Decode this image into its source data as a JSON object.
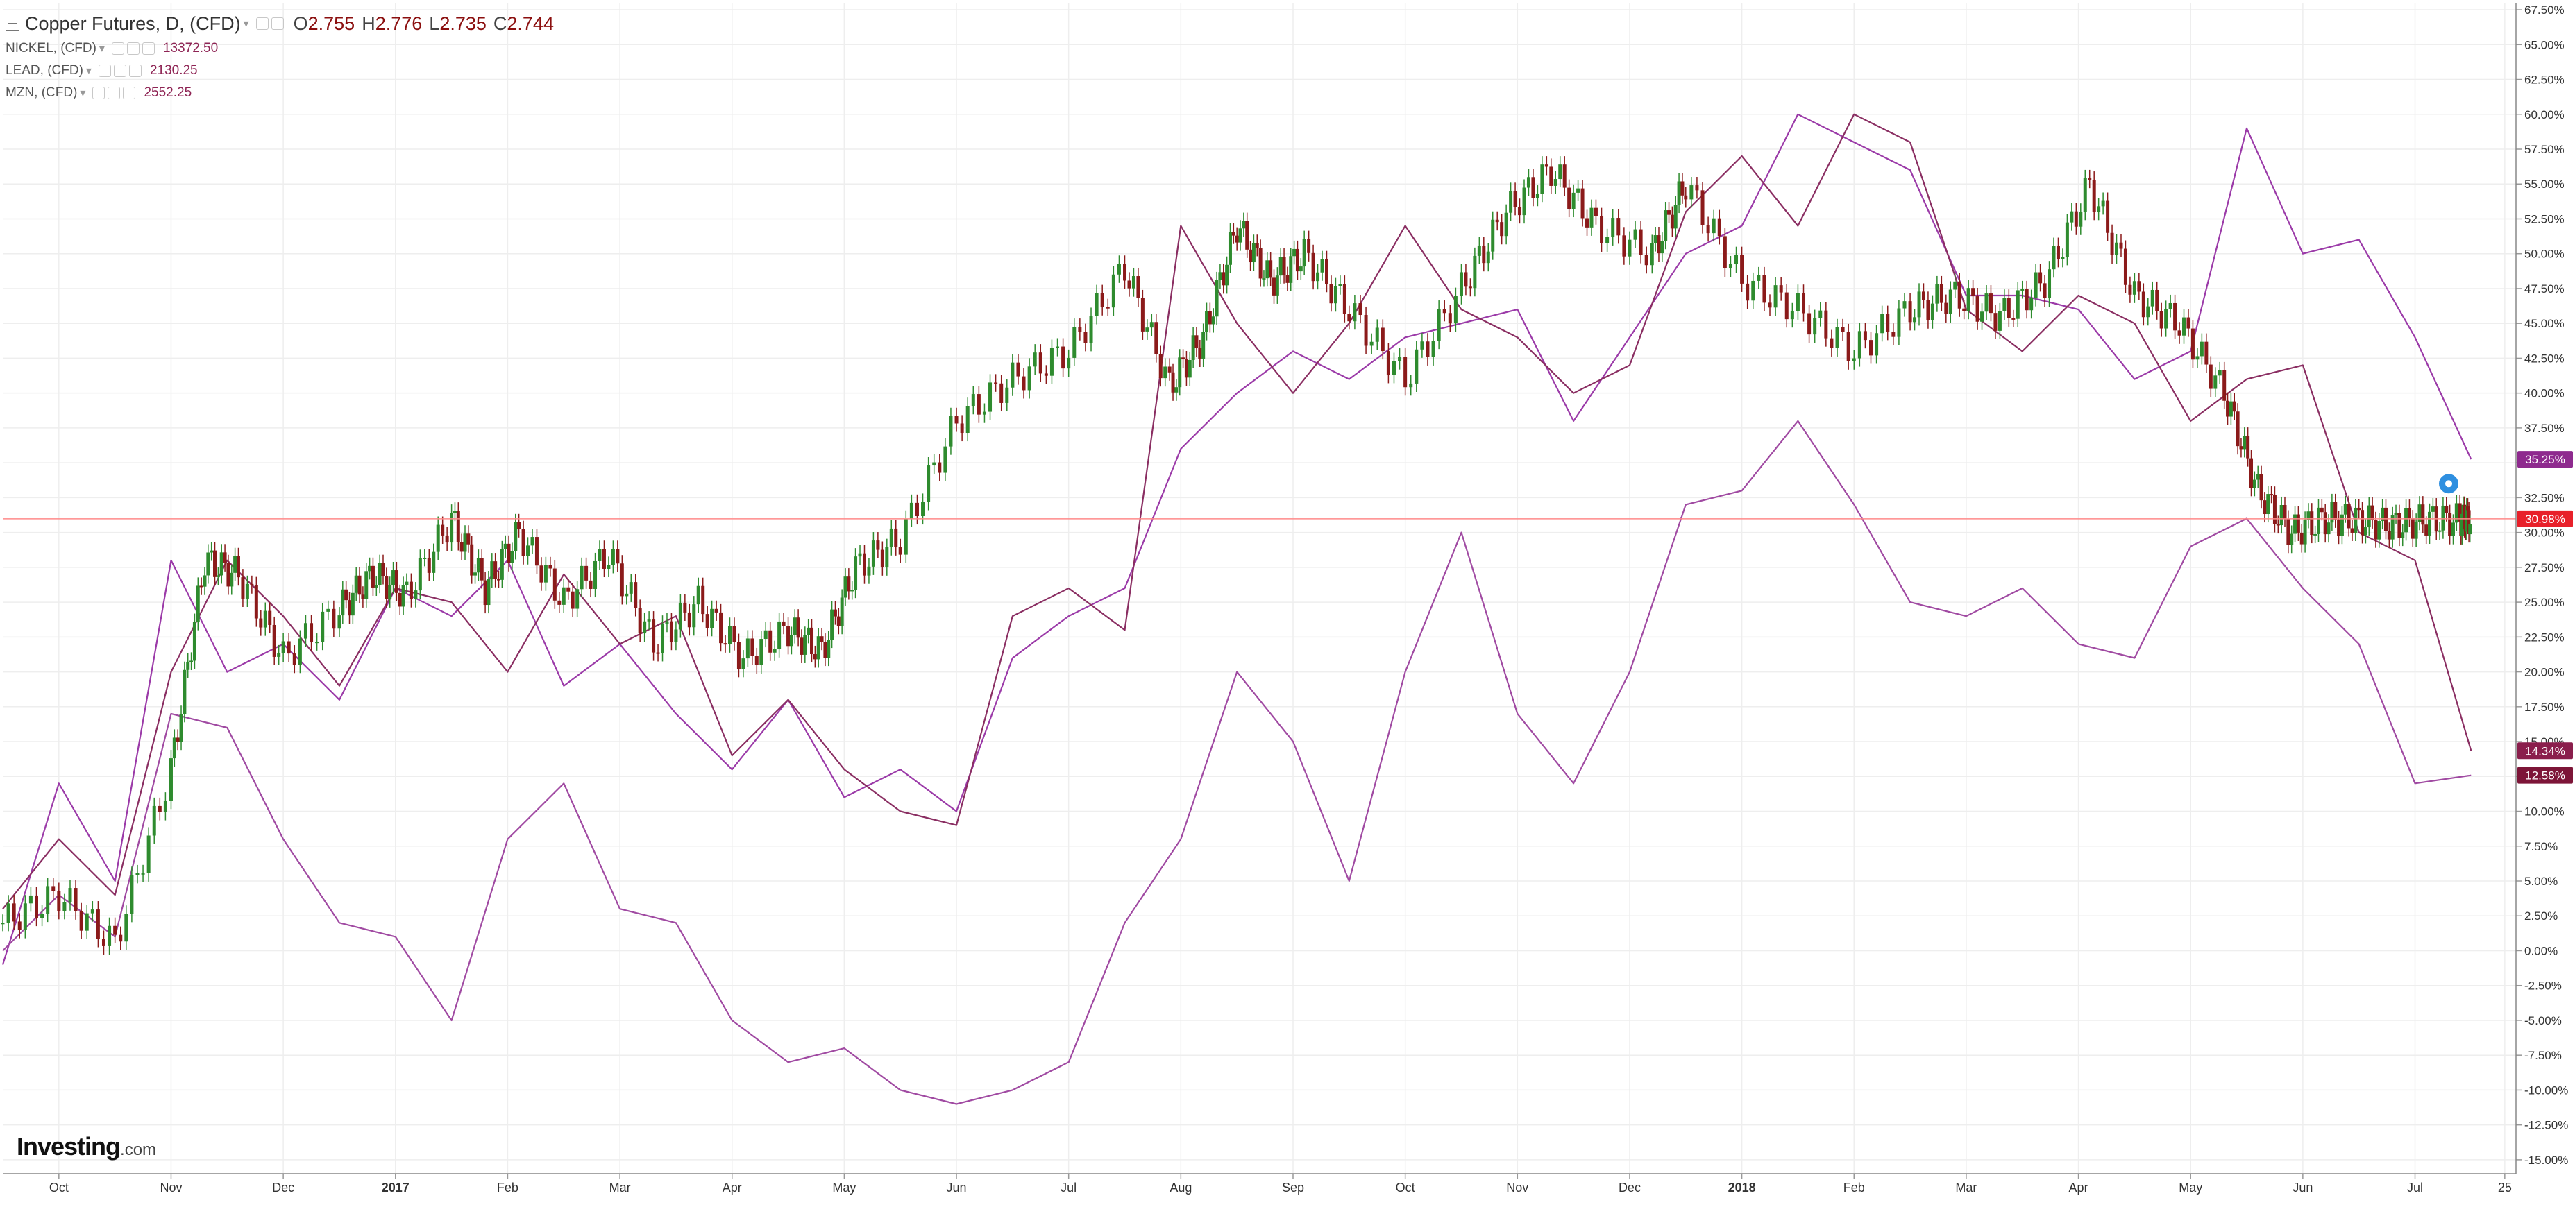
{
  "legend": {
    "title": "Copper Futures, D, (CFD)",
    "ohlc": [
      {
        "k": "O",
        "v": "2.755"
      },
      {
        "k": "H",
        "v": "2.776"
      },
      {
        "k": "L",
        "v": "2.735"
      },
      {
        "k": "C",
        "v": "2.744"
      }
    ],
    "overlays": [
      {
        "name": "NICKEL, (CFD)",
        "value": "13372.50"
      },
      {
        "name": "LEAD, (CFD)",
        "value": "2130.25"
      },
      {
        "name": "MZN, (CFD)",
        "value": "2552.25"
      }
    ]
  },
  "brand": {
    "name": "Investing",
    "suffix": ".com"
  },
  "colors": {
    "up": "#2e8b2e",
    "down": "#8b1a1a",
    "nickel": "#9b3aa8",
    "lead": "#8a2e62",
    "mzn": "#a04aa2",
    "price_line": "#ff8a8a",
    "badge_nickel": "#8e2a8e",
    "badge_price": "#e8202a",
    "badge_lead": "#8a1e4c",
    "badge_mzn": "#7d1538"
  },
  "chart_data": {
    "type": "line",
    "ylim": [
      -16,
      68
    ],
    "y_ticks": [
      "67.50%",
      "65.00%",
      "62.50%",
      "60.00%",
      "57.50%",
      "55.00%",
      "52.50%",
      "50.00%",
      "47.50%",
      "45.00%",
      "42.50%",
      "40.00%",
      "37.50%",
      "35.00%",
      "32.50%",
      "30.00%",
      "27.50%",
      "25.00%",
      "22.50%",
      "20.00%",
      "17.50%",
      "15.00%",
      "12.50%",
      "10.00%",
      "7.50%",
      "5.00%",
      "2.50%",
      "0.00%",
      "-2.50%",
      "-5.00%",
      "-7.50%",
      "-10.00%",
      "-12.50%",
      "-15.00%"
    ],
    "x_labels": [
      "Oct",
      "Nov",
      "Dec",
      "2017",
      "Feb",
      "Mar",
      "Apr",
      "May",
      "Jun",
      "Jul",
      "Aug",
      "Sep",
      "Oct",
      "Nov",
      "Dec",
      "2018",
      "Feb",
      "Mar",
      "Apr",
      "May",
      "Jun",
      "Jul",
      "25"
    ],
    "x_label_pos": [
      0.5,
      1.5,
      2.5,
      3.5,
      4.5,
      5.5,
      6.5,
      7.5,
      8.5,
      9.5,
      10.5,
      11.5,
      12.5,
      13.5,
      14.5,
      15.5,
      16.5,
      17.5,
      18.5,
      19.5,
      20.5,
      21.5,
      22.3
    ],
    "x_range": [
      0,
      22.4
    ],
    "series": [
      {
        "name": "Copper Futures, D, (CFD)",
        "kind": "candles",
        "x": [
          0.0,
          0.5,
          1.0,
          1.5,
          1.8,
          2.1,
          2.5,
          3.0,
          3.3,
          3.6,
          4.0,
          4.3,
          4.6,
          5.0,
          5.4,
          5.8,
          6.2,
          6.6,
          7.0,
          7.3,
          7.6,
          8.0,
          8.5,
          9.0,
          9.5,
          10.0,
          10.4,
          10.7,
          11.0,
          11.3,
          11.6,
          12.0,
          12.5,
          13.0,
          13.4,
          13.8,
          14.2,
          14.7,
          15.0,
          15.5,
          16.0,
          16.5,
          17.0,
          17.4,
          17.8,
          18.2,
          18.6,
          19.0,
          19.4,
          19.8,
          20.1,
          20.4,
          20.7,
          21.0,
          21.3,
          21.6,
          21.9,
          22.0
        ],
        "y": [
          2.0,
          4.0,
          0.5,
          13.0,
          28.0,
          27.0,
          21.0,
          24.5,
          27.0,
          25.5,
          31.0,
          26.0,
          30.0,
          25.0,
          28.5,
          22.0,
          25.0,
          21.0,
          23.0,
          21.5,
          27.5,
          29.5,
          38.0,
          41.0,
          43.0,
          49.0,
          40.5,
          44.0,
          52.0,
          48.0,
          50.0,
          46.0,
          41.0,
          47.5,
          53.0,
          56.0,
          52.0,
          50.0,
          55.0,
          48.0,
          46.0,
          43.0,
          46.0,
          47.0,
          45.5,
          48.0,
          55.0,
          47.0,
          45.0,
          40.0,
          33.0,
          30.0,
          31.0,
          30.9,
          30.5,
          30.9,
          30.9,
          30.98
        ],
        "label": "30.98%"
      },
      {
        "name": "NICKEL, (CFD)",
        "x": [
          0.0,
          0.5,
          1.0,
          1.5,
          2.0,
          2.5,
          3.0,
          3.5,
          4.0,
          4.5,
          5.0,
          5.5,
          6.0,
          6.5,
          7.0,
          7.5,
          8.0,
          8.5,
          9.0,
          9.5,
          10.0,
          10.5,
          11.0,
          11.5,
          12.0,
          12.5,
          13.0,
          13.5,
          14.0,
          14.5,
          15.0,
          15.5,
          16.0,
          16.5,
          17.0,
          17.5,
          18.0,
          18.5,
          19.0,
          19.5,
          20.0,
          20.5,
          21.0,
          21.5,
          22.0
        ],
        "y": [
          -1.0,
          12.0,
          5.0,
          28.0,
          20.0,
          22.0,
          18.0,
          26.0,
          24.0,
          28.0,
          19.0,
          22.0,
          17.0,
          13.0,
          18.0,
          11.0,
          13.0,
          10.0,
          21.0,
          24.0,
          26.0,
          36.0,
          40.0,
          43.0,
          41.0,
          44.0,
          45.0,
          46.0,
          38.0,
          44.0,
          50.0,
          52.0,
          60.0,
          58.0,
          56.0,
          47.0,
          47.0,
          46.0,
          41.0,
          43.0,
          59.0,
          50.0,
          51.0,
          44.0,
          35.25
        ],
        "label": "35.25%"
      },
      {
        "name": "LEAD, (CFD)",
        "x": [
          0.0,
          0.5,
          1.0,
          1.5,
          2.0,
          2.5,
          3.0,
          3.5,
          4.0,
          4.5,
          5.0,
          5.5,
          6.0,
          6.5,
          7.0,
          7.5,
          8.0,
          8.5,
          9.0,
          9.5,
          10.0,
          10.5,
          11.0,
          11.5,
          12.0,
          12.5,
          13.0,
          13.5,
          14.0,
          14.5,
          15.0,
          15.5,
          16.0,
          16.5,
          17.0,
          17.5,
          18.0,
          18.5,
          19.0,
          19.5,
          20.0,
          20.5,
          21.0,
          21.5,
          22.0
        ],
        "y": [
          3.0,
          8.0,
          4.0,
          20.0,
          28.0,
          24.0,
          19.0,
          26.0,
          25.0,
          20.0,
          27.0,
          22.0,
          24.0,
          14.0,
          18.0,
          13.0,
          10.0,
          9.0,
          24.0,
          26.0,
          23.0,
          52.0,
          45.0,
          40.0,
          45.0,
          52.0,
          46.0,
          44.0,
          40.0,
          42.0,
          53.0,
          57.0,
          52.0,
          60.0,
          58.0,
          46.0,
          43.0,
          47.0,
          45.0,
          38.0,
          41.0,
          42.0,
          30.0,
          28.0,
          14.34
        ],
        "label": "14.34%"
      },
      {
        "name": "MZN, (CFD)",
        "x": [
          0.0,
          0.5,
          1.0,
          1.5,
          2.0,
          2.5,
          3.0,
          3.5,
          4.0,
          4.5,
          5.0,
          5.5,
          6.0,
          6.5,
          7.0,
          7.5,
          8.0,
          8.5,
          9.0,
          9.5,
          10.0,
          10.5,
          11.0,
          11.5,
          12.0,
          12.5,
          13.0,
          13.5,
          14.0,
          14.5,
          15.0,
          15.5,
          16.0,
          16.5,
          17.0,
          17.5,
          18.0,
          18.5,
          19.0,
          19.5,
          20.0,
          20.5,
          21.0,
          21.5,
          22.0
        ],
        "y": [
          0.0,
          4.0,
          1.0,
          17.0,
          16.0,
          8.0,
          2.0,
          1.0,
          -5.0,
          8.0,
          12.0,
          3.0,
          2.0,
          -5.0,
          -8.0,
          -7.0,
          -10.0,
          -11.0,
          -10.0,
          -8.0,
          2.0,
          8.0,
          20.0,
          15.0,
          5.0,
          20.0,
          30.0,
          17.0,
          12.0,
          20.0,
          32.0,
          33.0,
          38.0,
          32.0,
          25.0,
          24.0,
          26.0,
          22.0,
          21.0,
          29.0,
          31.0,
          26.0,
          22.0,
          12.0,
          12.58
        ],
        "label": "12.58%"
      }
    ]
  }
}
